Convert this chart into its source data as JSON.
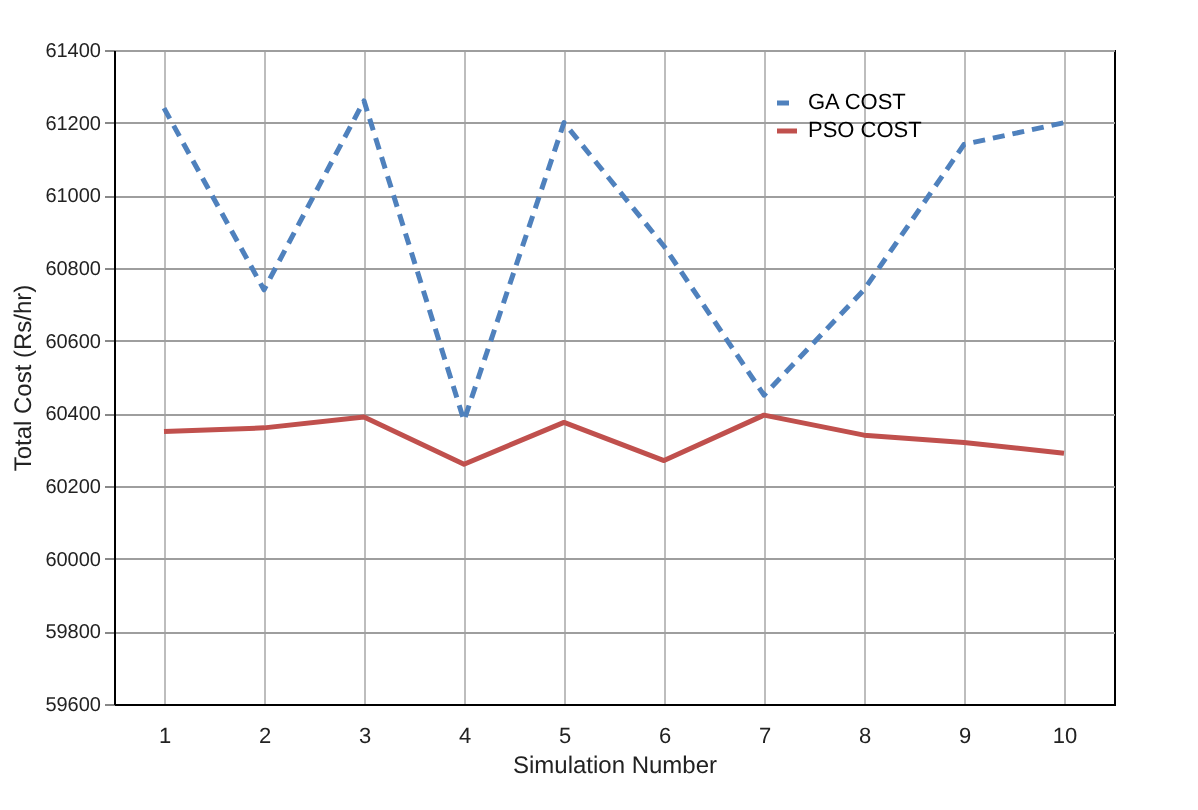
{
  "chart_data": {
    "type": "line",
    "xlabel": "Simulation Number",
    "ylabel": "Total Cost (Rs/hr)",
    "categories": [
      "1",
      "2",
      "3",
      "4",
      "5",
      "6",
      "7",
      "8",
      "9",
      "10"
    ],
    "series": [
      {
        "name": "GA COST",
        "color": "#4f81bd",
        "line_style": "dashed",
        "values": [
          61240,
          60740,
          61260,
          60380,
          61200,
          60860,
          60450,
          60740,
          61140,
          61200
        ]
      },
      {
        "name": "PSO COST",
        "color": "#c0504d",
        "line_style": "solid",
        "values": [
          60350,
          60360,
          60390,
          60260,
          60375,
          60270,
          60395,
          60340,
          60320,
          60290
        ]
      }
    ],
    "ylim": [
      59600,
      61400
    ],
    "yticks": [
      59600,
      59800,
      60000,
      60200,
      60400,
      60600,
      60800,
      61000,
      61200,
      61400
    ],
    "grid": true,
    "legend": "top right",
    "marker": "none"
  }
}
